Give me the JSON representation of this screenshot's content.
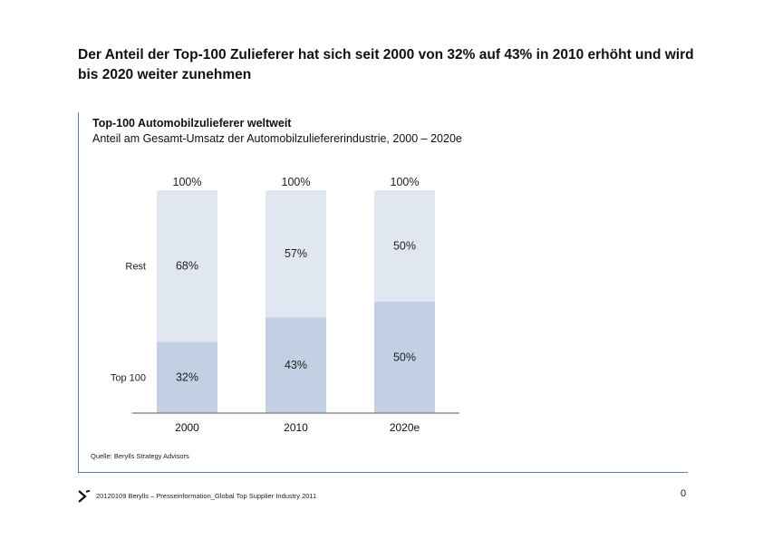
{
  "headline": "Der Anteil der Top-100 Zulieferer hat sich seit 2000 von 32% auf 43% in 2010 erhöht und wird bis 2020 weiter zunehmen",
  "source": "Quelle: Berylls Strategy Advisors",
  "footer": {
    "text": "20120109 Berylls – Presseinformation_Global Top Supplier Industry 2011",
    "page_number": "0",
    "logo_icon": "berylls-chevron-icon"
  },
  "colors": {
    "accent_line": "#5b7fa8",
    "top100": "#c3cfe2",
    "rest": "#e1e7f0",
    "axis": "#7a7a7a"
  },
  "chart_data": {
    "type": "bar",
    "stacked": true,
    "title": "Top-100 Automobilzulieferer weltweit",
    "subtitle": "Anteil am Gesamt-Umsatz der Automobilzuliefererindustrie, 2000 – 2020e",
    "categories": [
      "2000",
      "2010",
      "2020e"
    ],
    "series": [
      {
        "name": "Top 100",
        "values": [
          32,
          43,
          50
        ],
        "labels": [
          "32%",
          "43%",
          "50%"
        ]
      },
      {
        "name": "Rest",
        "values": [
          68,
          57,
          50
        ],
        "labels": [
          "68%",
          "57%",
          "50%"
        ]
      }
    ],
    "total_labels": [
      "100%",
      "100%",
      "100%"
    ],
    "ylim": [
      0,
      100
    ],
    "grid": false,
    "legend": "left"
  }
}
